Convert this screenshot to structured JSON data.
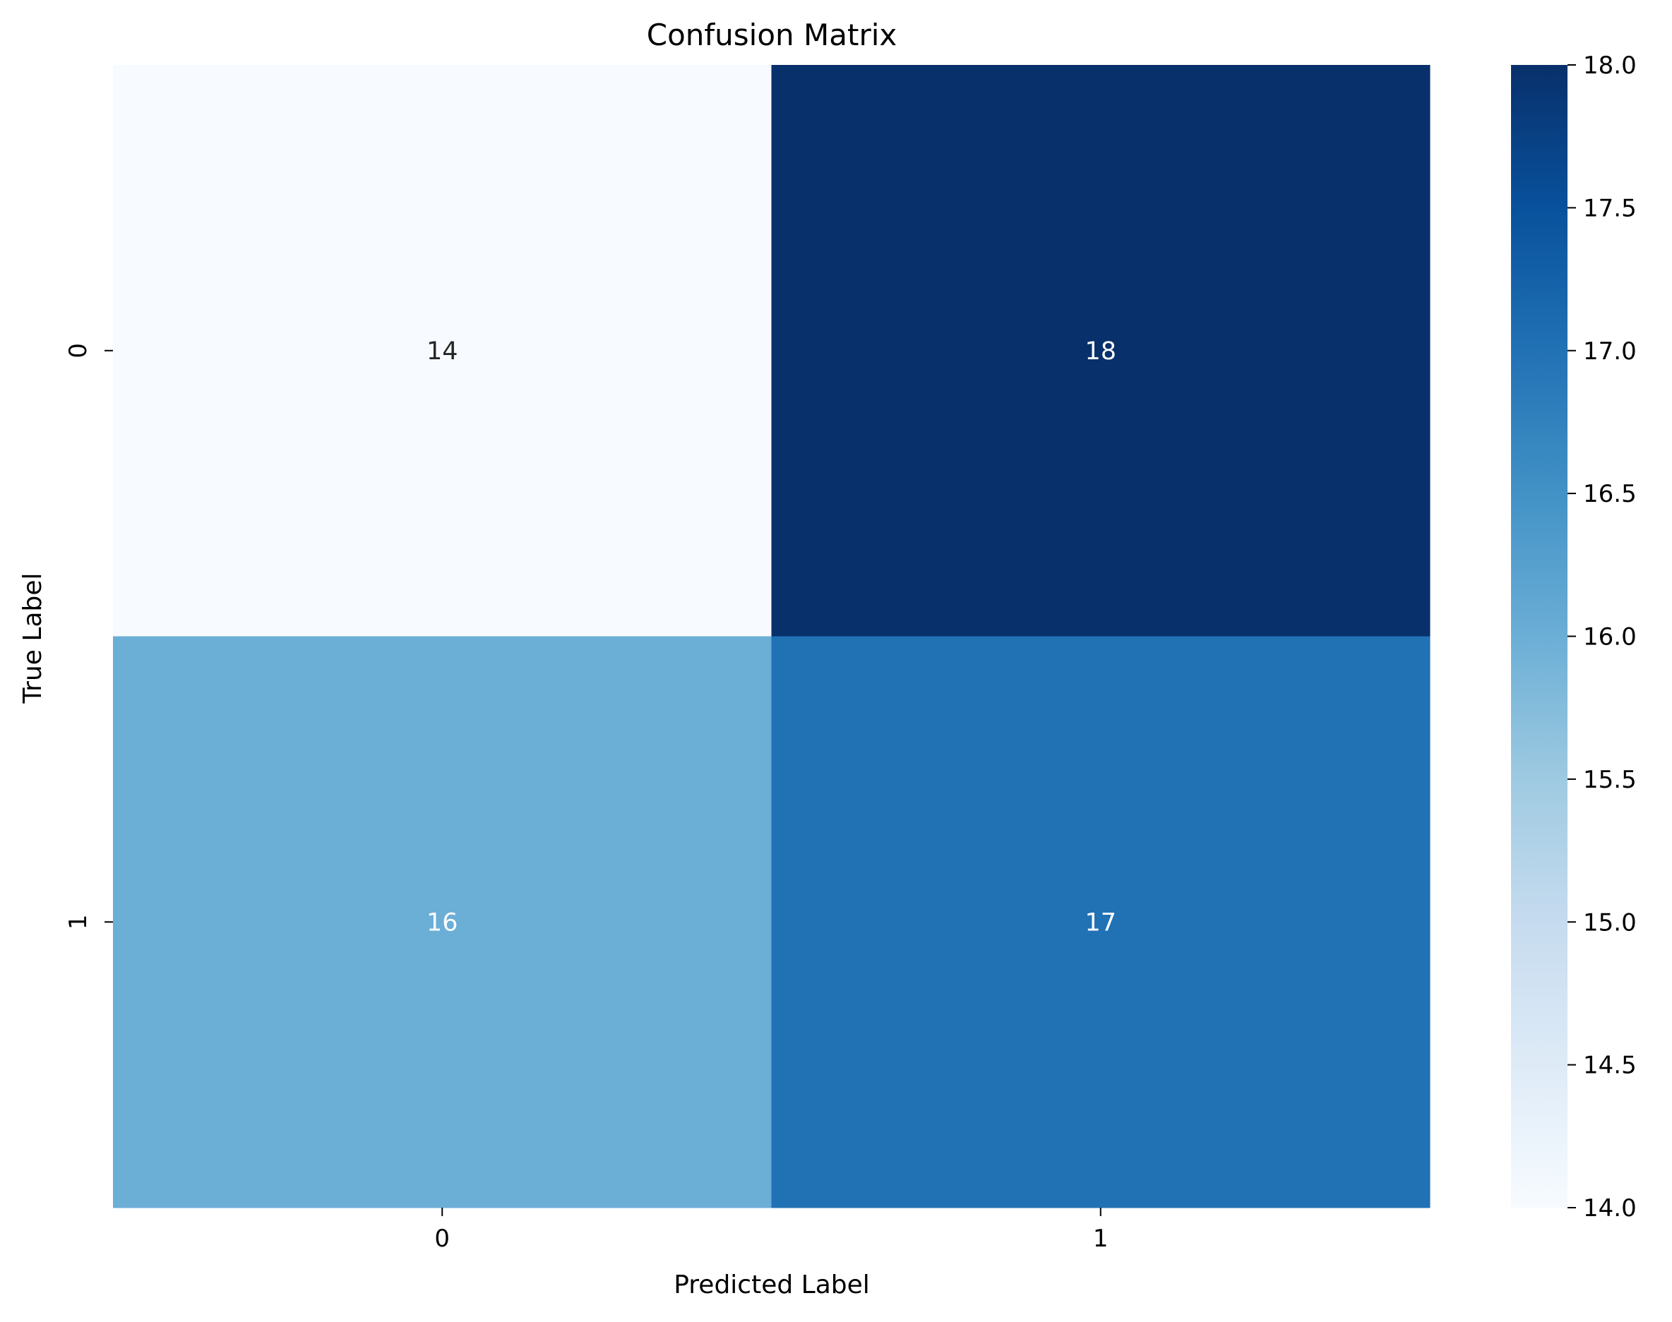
{
  "chart_data": {
    "type": "heatmap",
    "title": "Confusion Matrix",
    "xlabel": "Predicted Label",
    "ylabel": "True Label",
    "x_categories": [
      "0",
      "1"
    ],
    "y_categories": [
      "0",
      "1"
    ],
    "values": [
      [
        14,
        18
      ],
      [
        16,
        17
      ]
    ],
    "colormap": "Blues",
    "colorbar": {
      "range": [
        14,
        18
      ],
      "ticks": [
        14.0,
        14.5,
        15.0,
        15.5,
        16.0,
        16.5,
        17.0,
        17.5,
        18.0
      ],
      "tick_labels": [
        "14.0",
        "14.5",
        "15.0",
        "15.5",
        "16.0",
        "16.5",
        "17.0",
        "17.5",
        "18.0"
      ]
    },
    "cell_colors": [
      [
        "#f7fbff",
        "#08306b"
      ],
      [
        "#6baed6",
        "#2171b5"
      ]
    ],
    "annotation_colors": [
      [
        "#262626",
        "#ffffff"
      ],
      [
        "#ffffff",
        "#ffffff"
      ]
    ],
    "colorbar_stops": [
      "#f7fbff",
      "#deebf7",
      "#c6dbef",
      "#9ecae1",
      "#6baed6",
      "#4292c6",
      "#2171b5",
      "#08519c",
      "#08306b"
    ]
  }
}
